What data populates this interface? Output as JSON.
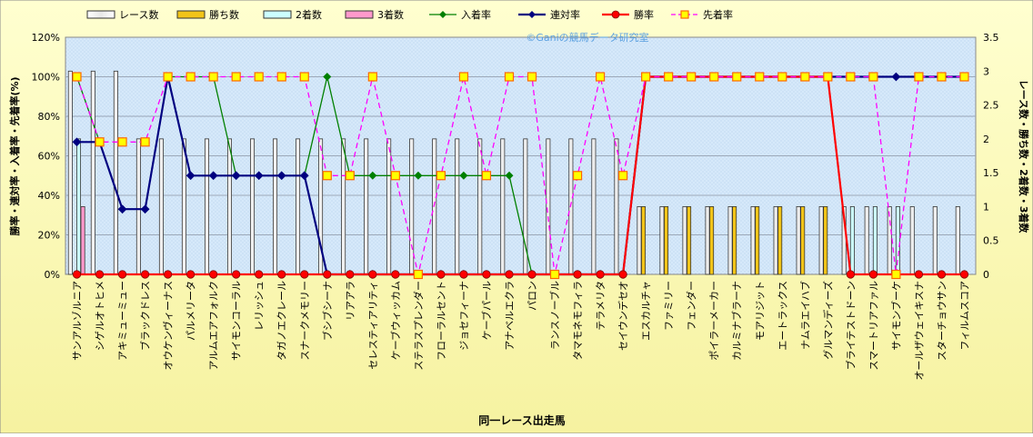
{
  "chart_data": {
    "type": "bar",
    "watermark": "©Ganiの競馬データ研究室",
    "xlabel": "同一レース出走馬",
    "ylabel_left": "勝率・連対率・入着率・先着率(%)",
    "ylabel_right": "レース数・勝ち数・2着数・3着数",
    "left_axis": {
      "min": 0,
      "max": 120,
      "step": 20,
      "unit": "%"
    },
    "right_axis": {
      "min": 0,
      "max": 3.5,
      "step": 0.5
    },
    "grid": true,
    "legend_position": "top",
    "categories": [
      "サンアルゾルニア",
      "シゲルオトヒメ",
      "アキミューミュー",
      "ブラックドレス",
      "オウケンヴィーナス",
      "パルメリータ",
      "アルムエアフォルク",
      "サイモンコーラル",
      "レリッシュ",
      "タガノエクレール",
      "スナークメモリー",
      "ブシブシーナ",
      "リアアラ",
      "セレスティアリティ",
      "ケーブウィッカム",
      "ステラスプレンダー",
      "フローラルセント",
      "ジョセフィーナ",
      "ケーブパール",
      "アナベルエクラ",
      "パロン",
      "ランスノーブル",
      "タマモネモフィラ",
      "テラメリタ",
      "セイウンデセオ",
      "エスカルチャ",
      "ファミリー",
      "フェンダー",
      "ポイラーメーカー",
      "カルミナブラーナ",
      "モアリジット",
      "エートラックス",
      "ナムラエイハブ",
      "グルマンディーズ",
      "ブライテストドーン",
      "スマートリアファル",
      "サイモンブーケ",
      "オールザウェイキスナ",
      "スターチョウサン",
      "フィルムスコア"
    ],
    "series": [
      {
        "name": "レース数",
        "axis": "right",
        "kind": "bar",
        "color": "#FFFFFF",
        "values": [
          3,
          3,
          3,
          2,
          2,
          2,
          2,
          2,
          2,
          2,
          2,
          2,
          2,
          2,
          2,
          2,
          2,
          2,
          2,
          2,
          2,
          2,
          2,
          2,
          2,
          1,
          1,
          1,
          1,
          1,
          1,
          1,
          1,
          1,
          1,
          1,
          1,
          1,
          1,
          1
        ]
      },
      {
        "name": "勝ち数",
        "axis": "right",
        "kind": "bar",
        "color": "#F2C418",
        "values": [
          0,
          0,
          0,
          0,
          0,
          0,
          0,
          0,
          0,
          0,
          0,
          0,
          0,
          0,
          0,
          0,
          0,
          0,
          0,
          0,
          0,
          0,
          0,
          0,
          0,
          1,
          1,
          1,
          1,
          1,
          1,
          1,
          1,
          1,
          0,
          0,
          0,
          0,
          0,
          0
        ]
      },
      {
        "name": "2着数",
        "axis": "right",
        "kind": "bar",
        "color": "#CCFFFF",
        "values": [
          2,
          0,
          0,
          0,
          0,
          0,
          0,
          0,
          0,
          0,
          0,
          0,
          0,
          0,
          0,
          0,
          0,
          0,
          0,
          0,
          0,
          0,
          0,
          0,
          0,
          0,
          0,
          0,
          0,
          0,
          0,
          0,
          0,
          0,
          1,
          1,
          1,
          0,
          0,
          0
        ]
      },
      {
        "name": "3着数",
        "axis": "right",
        "kind": "bar",
        "color": "#FF99CC",
        "values": [
          1,
          0,
          0,
          0,
          0,
          0,
          0,
          0,
          0,
          0,
          0,
          0,
          0,
          0,
          0,
          0,
          0,
          0,
          0,
          0,
          0,
          0,
          0,
          0,
          0,
          0,
          0,
          0,
          0,
          0,
          0,
          0,
          0,
          0,
          0,
          0,
          0,
          0,
          0,
          0
        ]
      },
      {
        "name": "入着率",
        "axis": "left",
        "kind": "line",
        "color": "#008000",
        "marker": "diamond",
        "values": [
          100,
          67,
          33,
          33,
          100,
          100,
          100,
          50,
          50,
          50,
          50,
          100,
          50,
          50,
          50,
          50,
          50,
          50,
          50,
          50,
          0,
          0,
          0,
          0,
          0,
          100,
          100,
          100,
          100,
          100,
          100,
          100,
          100,
          100,
          100,
          100,
          100,
          100,
          100,
          100
        ]
      },
      {
        "name": "連対率",
        "axis": "left",
        "kind": "line",
        "color": "#000080",
        "marker": "diamond",
        "values": [
          67,
          67,
          33,
          33,
          100,
          50,
          50,
          50,
          50,
          50,
          50,
          0,
          0,
          0,
          0,
          0,
          0,
          0,
          0,
          0,
          0,
          0,
          0,
          0,
          0,
          100,
          100,
          100,
          100,
          100,
          100,
          100,
          100,
          100,
          100,
          100,
          100,
          100,
          100,
          100
        ]
      },
      {
        "name": "勝率",
        "axis": "left",
        "kind": "line",
        "color": "#FF0000",
        "marker": "circle",
        "values": [
          0,
          0,
          0,
          0,
          0,
          0,
          0,
          0,
          0,
          0,
          0,
          0,
          0,
          0,
          0,
          0,
          0,
          0,
          0,
          0,
          0,
          0,
          0,
          0,
          0,
          100,
          100,
          100,
          100,
          100,
          100,
          100,
          100,
          100,
          0,
          0,
          0,
          0,
          0,
          0
        ]
      },
      {
        "name": "先着率",
        "axis": "left",
        "kind": "dashed-line",
        "color": "#FF00FF",
        "marker": "square",
        "values": [
          100,
          67,
          67,
          67,
          100,
          100,
          100,
          100,
          100,
          100,
          100,
          50,
          50,
          100,
          50,
          0,
          50,
          100,
          50,
          100,
          100,
          0,
          50,
          100,
          50,
          100,
          100,
          100,
          100,
          100,
          100,
          100,
          100,
          100,
          100,
          100,
          0,
          100,
          100,
          100
        ]
      }
    ]
  }
}
